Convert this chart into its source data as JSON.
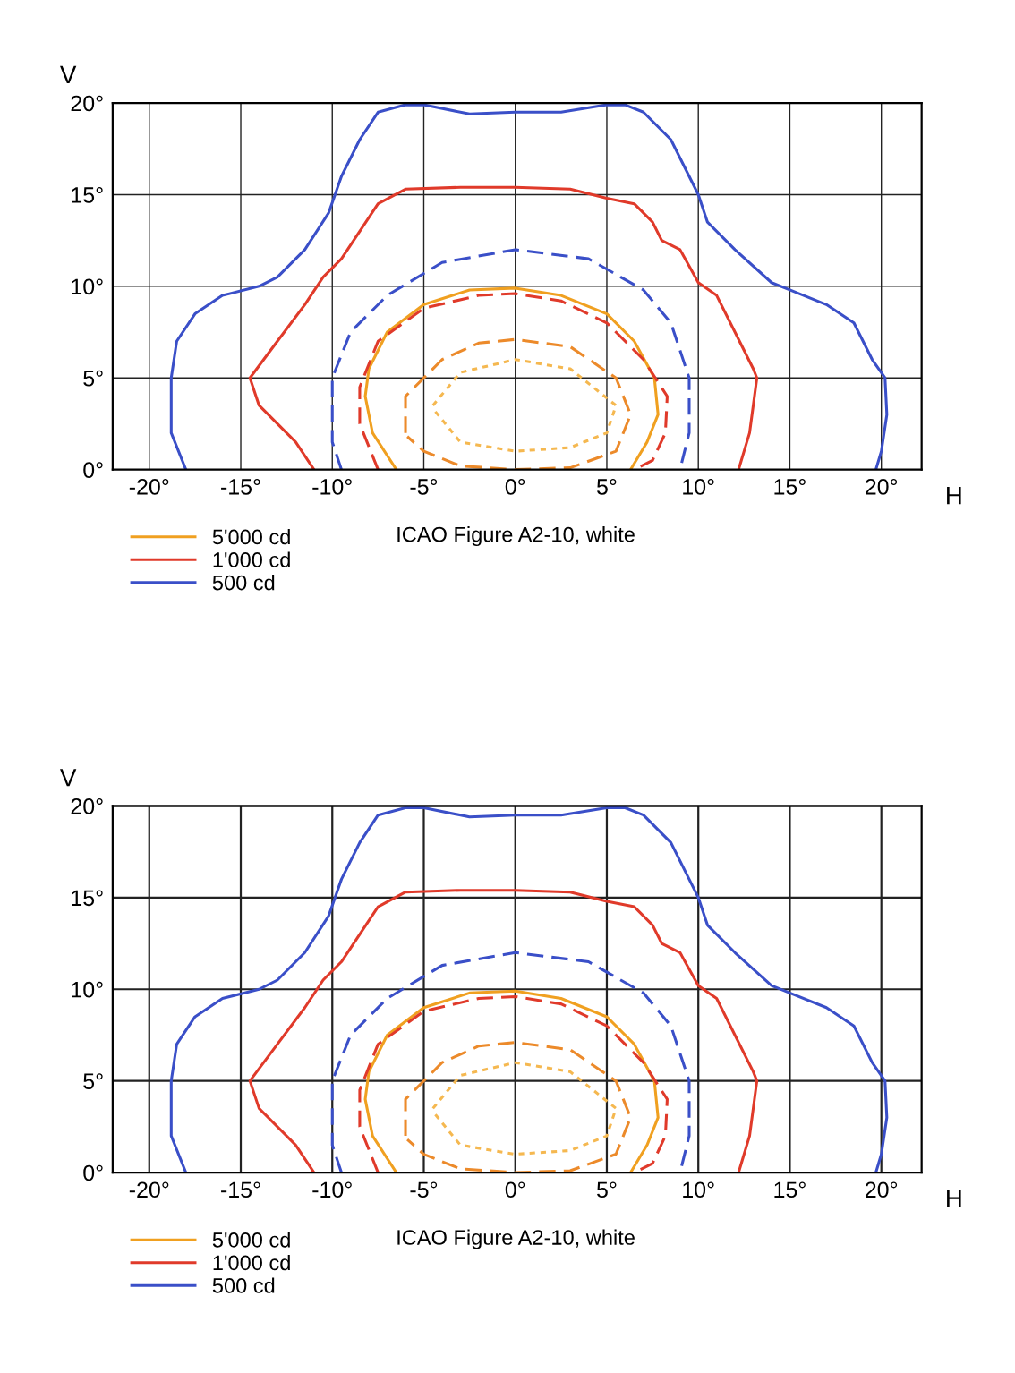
{
  "chart_data": [
    {
      "type": "line",
      "xlabel": "H",
      "ylabel": "V",
      "annotations": [
        "ICAO Figure A2-10, white"
      ],
      "xlim": [
        -22,
        22.2
      ],
      "ylim": [
        0,
        20
      ],
      "xticks": [
        {
          "value": -20,
          "label": "-20°"
        },
        {
          "value": -15,
          "label": "-15°"
        },
        {
          "value": -10,
          "label": "-10°"
        },
        {
          "value": -5,
          "label": "-5°"
        },
        {
          "value": 0,
          "label": "0°"
        },
        {
          "value": 5,
          "label": "5°"
        },
        {
          "value": 10,
          "label": "10°"
        },
        {
          "value": 15,
          "label": "15°"
        },
        {
          "value": 20,
          "label": "20°"
        }
      ],
      "yticks": [
        {
          "value": 0,
          "label": "0°"
        },
        {
          "value": 5,
          "label": "5°"
        },
        {
          "value": 10,
          "label": "10°"
        },
        {
          "value": 15,
          "label": "15°"
        },
        {
          "value": 20,
          "label": "20°"
        }
      ],
      "grid": true,
      "legend": "bottom left",
      "series": [
        {
          "name": "5'000 cd",
          "color": "#f0a020",
          "line_style": "solid",
          "x": [
            -6.5,
            -7.8,
            -8.2,
            -8,
            -7,
            -5,
            -2.5,
            0,
            2.5,
            5,
            6.5,
            7.6,
            7.8,
            7.2,
            6.3
          ],
          "values": [
            0,
            2,
            4,
            5.5,
            7.5,
            9,
            9.8,
            9.9,
            9.5,
            8.5,
            7,
            5,
            3,
            1.5,
            0
          ]
        },
        {
          "name": "1'000 cd",
          "color": "#e03a2a",
          "line_style": "solid",
          "x": [
            -11,
            -12,
            -14,
            -14.5,
            -13,
            -11.5,
            -10.5,
            -9.5,
            -8.5,
            -7.5,
            -6,
            -3,
            0,
            3,
            5,
            6.5,
            7.5,
            8,
            9,
            10,
            11,
            12,
            13,
            13.2,
            13,
            12.8,
            12.5,
            12.2
          ],
          "values": [
            0,
            1.5,
            3.5,
            5,
            7,
            9,
            10.5,
            11.5,
            13,
            14.5,
            15.3,
            15.4,
            15.4,
            15.3,
            14.8,
            14.5,
            13.5,
            12.5,
            12,
            10.2,
            9.5,
            7.5,
            5.5,
            5,
            3.5,
            2,
            1,
            0
          ]
        },
        {
          "name": "500 cd",
          "color": "#3a4fc8",
          "line_style": "solid",
          "x": [
            -18,
            -18.8,
            -18.8,
            -18.5,
            -17.5,
            -16,
            -14,
            -13,
            -11.5,
            -10.2,
            -9.5,
            -8.5,
            -7.5,
            -6,
            -5,
            -2.5,
            0,
            2.5,
            5,
            6,
            7,
            8.5,
            9.5,
            10,
            10.5,
            12,
            14,
            15,
            17,
            18.5,
            19.5,
            20.2,
            20.3,
            20,
            19.7
          ],
          "values": [
            0,
            2,
            5,
            7,
            8.5,
            9.5,
            10,
            10.5,
            12,
            14,
            16,
            18,
            19.5,
            19.9,
            19.9,
            19.4,
            19.5,
            19.5,
            19.9,
            19.9,
            19.5,
            18,
            16,
            15,
            13.5,
            12,
            10.2,
            9.8,
            9,
            8,
            6,
            5,
            3,
            1,
            0
          ]
        },
        {
          "color": "#3a4fc8",
          "line_style": "dashed",
          "x": [
            -9.5,
            -10,
            -10,
            -9,
            -7,
            -4,
            0,
            4,
            7,
            8.5,
            9.5,
            9.5,
            9
          ],
          "values": [
            0,
            1.5,
            5,
            7.5,
            9.5,
            11.3,
            12,
            11.5,
            9.8,
            8,
            5,
            2,
            0
          ]
        },
        {
          "color": "#e03a2a",
          "line_style": "dashed",
          "x": [
            -7.5,
            -8.5,
            -8.5,
            -7.5,
            -5,
            -2,
            0,
            2.5,
            5,
            7,
            8.3,
            8.2,
            7.5,
            6.5
          ],
          "values": [
            0,
            2.5,
            4.5,
            7,
            8.8,
            9.5,
            9.6,
            9.2,
            8,
            6,
            4,
            2,
            0.5,
            0
          ]
        },
        {
          "color": "#ec8a2a",
          "line_style": "dashed",
          "x": [
            -6,
            -6,
            -4,
            -2,
            0,
            3,
            5.5,
            6.3,
            5.5,
            3,
            0,
            -3,
            -5,
            -5.9
          ],
          "values": [
            2,
            4,
            6,
            6.9,
            7.1,
            6.7,
            5,
            3,
            1,
            0.1,
            0,
            0.2,
            1,
            1.8
          ]
        },
        {
          "color": "#f5b850",
          "line_style": "dotted",
          "x": [
            -4.5,
            -3,
            0,
            3,
            5.5,
            5,
            3,
            0,
            -3,
            -4.4
          ],
          "values": [
            3.5,
            5.3,
            6,
            5.5,
            3.5,
            2,
            1.2,
            1,
            1.5,
            3.2
          ]
        }
      ]
    },
    {
      "type": "line",
      "xlabel": "H",
      "ylabel": "V",
      "annotations": [
        "ICAO Figure A2-10, white"
      ],
      "xlim": [
        -22,
        22.2
      ],
      "ylim": [
        0,
        20
      ],
      "xticks": [
        {
          "value": -20,
          "label": "-20°"
        },
        {
          "value": -15,
          "label": "-15°"
        },
        {
          "value": -10,
          "label": "-10°"
        },
        {
          "value": -5,
          "label": "-5°"
        },
        {
          "value": 0,
          "label": "0°"
        },
        {
          "value": 5,
          "label": "5°"
        },
        {
          "value": 10,
          "label": "10°"
        },
        {
          "value": 15,
          "label": "15°"
        },
        {
          "value": 20,
          "label": "20°"
        }
      ],
      "yticks": [
        {
          "value": 0,
          "label": "0°"
        },
        {
          "value": 5,
          "label": "5°"
        },
        {
          "value": 10,
          "label": "10°"
        },
        {
          "value": 15,
          "label": "15°"
        },
        {
          "value": 20,
          "label": "20°"
        }
      ],
      "grid": true,
      "legend": "bottom left",
      "series": [
        {
          "name": "5'000 cd",
          "color": "#f0a020",
          "line_style": "solid",
          "x": [
            -6.5,
            -7.8,
            -8.2,
            -8,
            -7,
            -5,
            -2.5,
            0,
            2.5,
            5,
            6.5,
            7.6,
            7.8,
            7.2,
            6.3
          ],
          "values": [
            0,
            2,
            4,
            5.5,
            7.5,
            9,
            9.8,
            9.9,
            9.5,
            8.5,
            7,
            5,
            3,
            1.5,
            0
          ]
        },
        {
          "name": "1'000 cd",
          "color": "#e03a2a",
          "line_style": "solid",
          "x": [
            -11,
            -12,
            -14,
            -14.5,
            -13,
            -11.5,
            -10.5,
            -9.5,
            -8.5,
            -7.5,
            -6,
            -3,
            0,
            3,
            5,
            6.5,
            7.5,
            8,
            9,
            10,
            11,
            12,
            13,
            13.2,
            13,
            12.8,
            12.5,
            12.2
          ],
          "values": [
            0,
            1.5,
            3.5,
            5,
            7,
            9,
            10.5,
            11.5,
            13,
            14.5,
            15.3,
            15.4,
            15.4,
            15.3,
            14.8,
            14.5,
            13.5,
            12.5,
            12,
            10.2,
            9.5,
            7.5,
            5.5,
            5,
            3.5,
            2,
            1,
            0
          ]
        },
        {
          "name": "500 cd",
          "color": "#3a4fc8",
          "line_style": "solid",
          "x": [
            -18,
            -18.8,
            -18.8,
            -18.5,
            -17.5,
            -16,
            -14,
            -13,
            -11.5,
            -10.2,
            -9.5,
            -8.5,
            -7.5,
            -6,
            -5,
            -2.5,
            0,
            2.5,
            5,
            6,
            7,
            8.5,
            9.5,
            10,
            10.5,
            12,
            14,
            15,
            17,
            18.5,
            19.5,
            20.2,
            20.3,
            20,
            19.7
          ],
          "values": [
            0,
            2,
            5,
            7,
            8.5,
            9.5,
            10,
            10.5,
            12,
            14,
            16,
            18,
            19.5,
            19.9,
            19.9,
            19.4,
            19.5,
            19.5,
            19.9,
            19.9,
            19.5,
            18,
            16,
            15,
            13.5,
            12,
            10.2,
            9.8,
            9,
            8,
            6,
            5,
            3,
            1,
            0
          ]
        },
        {
          "color": "#3a4fc8",
          "line_style": "dashed",
          "x": [
            -9.5,
            -10,
            -10,
            -9,
            -7,
            -4,
            0,
            4,
            7,
            8.5,
            9.5,
            9.5,
            9
          ],
          "values": [
            0,
            1.5,
            5,
            7.5,
            9.5,
            11.3,
            12,
            11.5,
            9.8,
            8,
            5,
            2,
            0
          ]
        },
        {
          "color": "#e03a2a",
          "line_style": "dashed",
          "x": [
            -7.5,
            -8.5,
            -8.5,
            -7.5,
            -5,
            -2,
            0,
            2.5,
            5,
            7,
            8.3,
            8.2,
            7.5,
            6.5
          ],
          "values": [
            0,
            2.5,
            4.5,
            7,
            8.8,
            9.5,
            9.6,
            9.2,
            8,
            6,
            4,
            2,
            0.5,
            0
          ]
        },
        {
          "color": "#ec8a2a",
          "line_style": "dashed",
          "x": [
            -6,
            -6,
            -4,
            -2,
            0,
            3,
            5.5,
            6.3,
            5.5,
            3,
            0,
            -3,
            -5,
            -5.9
          ],
          "values": [
            2,
            4,
            6,
            6.9,
            7.1,
            6.7,
            5,
            3,
            1,
            0.1,
            0,
            0.2,
            1,
            1.8
          ]
        },
        {
          "color": "#f5b850",
          "line_style": "dotted",
          "x": [
            -4.5,
            -3,
            0,
            3,
            5.5,
            5,
            3,
            0,
            -3,
            -4.4
          ],
          "values": [
            3.5,
            5.3,
            6,
            5.5,
            3.5,
            2,
            1.2,
            1,
            1.5,
            3.2
          ]
        }
      ]
    }
  ]
}
